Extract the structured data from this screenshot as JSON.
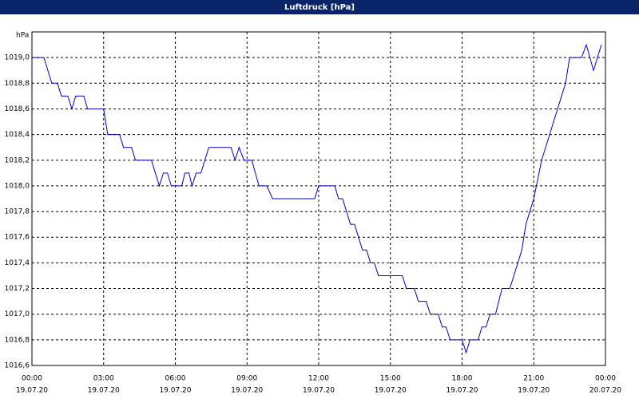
{
  "chart_data": {
    "type": "line",
    "title": "Luftdruck [hPa]",
    "y_label": "hPa",
    "color": "#0000c8",
    "grid": true,
    "x": [
      0,
      0.5,
      0.83,
      1.07,
      1.23,
      1.5,
      1.67,
      1.83,
      2.17,
      2.33,
      3,
      3.17,
      3.67,
      3.83,
      4.17,
      4.33,
      5,
      5.33,
      5.5,
      5.67,
      5.83,
      6.27,
      6.4,
      6.57,
      6.7,
      6.87,
      7.07,
      7.4,
      8.33,
      8.5,
      8.67,
      8.87,
      9.2,
      9.5,
      9.83,
      10.07,
      11.83,
      12,
      12.67,
      12.83,
      13,
      13.33,
      13.5,
      13.83,
      14,
      14.17,
      14.33,
      14.5,
      15.5,
      15.67,
      16,
      16.17,
      16.5,
      16.67,
      17,
      17.17,
      17.33,
      17.5,
      18,
      18.17,
      18.33,
      18.67,
      18.83,
      19,
      19.17,
      19.4,
      19.67,
      20,
      20.5,
      20.67,
      21,
      21.33,
      22.33,
      22.5,
      23,
      23.2,
      23.5,
      23.83
    ],
    "values": [
      1019.0,
      1019.0,
      1018.8,
      1018.8,
      1018.7,
      1018.7,
      1018.6,
      1018.7,
      1018.7,
      1018.6,
      1018.6,
      1018.4,
      1018.4,
      1018.3,
      1018.3,
      1018.2,
      1018.2,
      1018.0,
      1018.1,
      1018.1,
      1018.0,
      1018.0,
      1018.1,
      1018.1,
      1018.0,
      1018.1,
      1018.1,
      1018.3,
      1018.3,
      1018.2,
      1018.3,
      1018.2,
      1018.2,
      1018.0,
      1018.0,
      1017.9,
      1017.9,
      1018.0,
      1018.0,
      1017.9,
      1017.9,
      1017.7,
      1017.7,
      1017.5,
      1017.5,
      1017.4,
      1017.4,
      1017.3,
      1017.3,
      1017.2,
      1017.2,
      1017.1,
      1017.1,
      1017.0,
      1017.0,
      1016.9,
      1016.9,
      1016.8,
      1016.8,
      1016.7,
      1016.8,
      1016.8,
      1016.9,
      1016.9,
      1017.0,
      1017.0,
      1017.2,
      1017.2,
      1017.5,
      1017.7,
      1017.9,
      1018.2,
      1018.8,
      1019.0,
      1019.0,
      1019.1,
      1018.9,
      1019.1
    ],
    "xlim": [
      0,
      24
    ],
    "xticks": [
      {
        "value": 0,
        "label": "00:00"
      },
      {
        "value": 3,
        "label": "03:00"
      },
      {
        "value": 6,
        "label": "06:00"
      },
      {
        "value": 9,
        "label": "09:00"
      },
      {
        "value": 12,
        "label": "12:00"
      },
      {
        "value": 15,
        "label": "15:00"
      },
      {
        "value": 18,
        "label": "18:00"
      },
      {
        "value": 21,
        "label": "21:00"
      },
      {
        "value": 24,
        "label": "00:00"
      }
    ],
    "xtick_dates": [
      "19.07.20",
      "19.07.20",
      "19.07.20",
      "19.07.20",
      "19.07.20",
      "19.07.20",
      "19.07.20",
      "19.07.20",
      "20.07.20"
    ],
    "ylim": [
      1016.6,
      1019.2
    ],
    "yticks": [
      {
        "value": 1016.6,
        "label": "1016,6"
      },
      {
        "value": 1016.8,
        "label": "1016,8"
      },
      {
        "value": 1017.0,
        "label": "1017,0"
      },
      {
        "value": 1017.2,
        "label": "1017,2"
      },
      {
        "value": 1017.4,
        "label": "1017,4"
      },
      {
        "value": 1017.6,
        "label": "1017,6"
      },
      {
        "value": 1017.8,
        "label": "1017,8"
      },
      {
        "value": 1018.0,
        "label": "1018,0"
      },
      {
        "value": 1018.2,
        "label": "1018,2"
      },
      {
        "value": 1018.4,
        "label": "1018,4"
      },
      {
        "value": 1018.6,
        "label": "1018,6"
      },
      {
        "value": 1018.8,
        "label": "1018,8"
      },
      {
        "value": 1019.0,
        "label": "1019,0"
      }
    ]
  }
}
